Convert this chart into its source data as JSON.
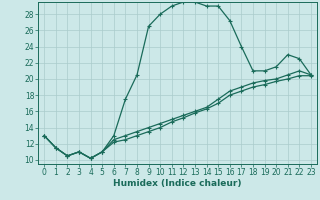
{
  "xlabel": "Humidex (Indice chaleur)",
  "bg_color": "#cce8e8",
  "line_color": "#1a6b5a",
  "xlim": [
    -0.5,
    23.5
  ],
  "ylim": [
    9.5,
    29.5
  ],
  "xticks": [
    0,
    1,
    2,
    3,
    4,
    5,
    6,
    7,
    8,
    9,
    10,
    11,
    12,
    13,
    14,
    15,
    16,
    17,
    18,
    19,
    20,
    21,
    22,
    23
  ],
  "yticks": [
    10,
    12,
    14,
    16,
    18,
    20,
    22,
    24,
    26,
    28
  ],
  "curve1_x": [
    0,
    1,
    2,
    3,
    4,
    5,
    6,
    7,
    8,
    9,
    10,
    11,
    12,
    13,
    14,
    15,
    16,
    17,
    18,
    19,
    20,
    21,
    22,
    23
  ],
  "curve1_y": [
    13,
    11.5,
    10.5,
    11,
    10.2,
    11,
    13,
    17.5,
    20.5,
    26.5,
    28,
    29,
    29.5,
    29.5,
    29,
    29,
    27.2,
    24,
    21,
    21,
    21.5,
    23,
    22.5,
    20.5
  ],
  "curve2_x": [
    0,
    1,
    2,
    3,
    4,
    5,
    6,
    7,
    8,
    9,
    10,
    11,
    12,
    13,
    14,
    15,
    16,
    17,
    18,
    19,
    20,
    21,
    22,
    23
  ],
  "curve2_y": [
    13,
    11.5,
    10.5,
    11,
    10.2,
    11,
    12.5,
    13,
    13.5,
    14,
    14.5,
    15,
    15.5,
    16,
    16.5,
    17.5,
    18.5,
    19.0,
    19.5,
    19.8,
    20.0,
    20.5,
    21,
    20.5
  ],
  "curve3_x": [
    0,
    1,
    2,
    3,
    4,
    5,
    6,
    7,
    8,
    9,
    10,
    11,
    12,
    13,
    14,
    15,
    16,
    17,
    18,
    19,
    20,
    21,
    22,
    23
  ],
  "curve3_y": [
    13,
    11.5,
    10.5,
    11,
    10.2,
    11,
    12.2,
    12.5,
    13.0,
    13.5,
    14.0,
    14.7,
    15.2,
    15.8,
    16.3,
    17.0,
    18.0,
    18.5,
    19.0,
    19.3,
    19.7,
    20.0,
    20.4,
    20.4
  ],
  "marker": "+",
  "markersize": 3,
  "linewidth": 0.9,
  "grid_color": "#aacccc",
  "font_color": "#1a6b5a",
  "tick_fontsize": 5.5,
  "xlabel_fontsize": 6.5
}
